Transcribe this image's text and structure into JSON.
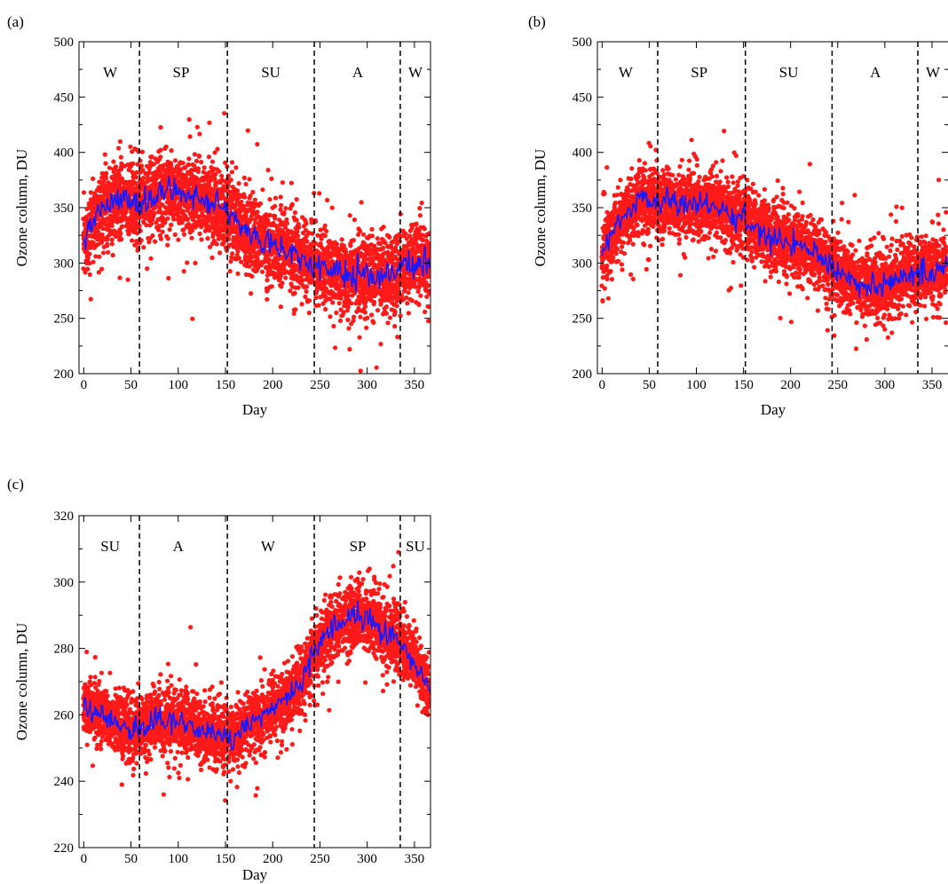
{
  "chart_data": [
    {
      "panel_label": "(a)",
      "type": "scatter",
      "xlabel": "Day",
      "ylabel": "Ozone column, DU",
      "xlim": [
        -5,
        367
      ],
      "ylim": [
        200,
        500
      ],
      "xticks": [
        0,
        50,
        100,
        150,
        200,
        250,
        300,
        350
      ],
      "yticks": [
        200,
        250,
        300,
        350,
        400,
        450,
        500
      ],
      "season_boundaries": [
        59,
        152,
        244,
        335
      ],
      "season_labels": [
        {
          "text": "W",
          "x": 28
        },
        {
          "text": "SP",
          "x": 103
        },
        {
          "text": "SU",
          "x": 198
        },
        {
          "text": "A",
          "x": 290
        },
        {
          "text": "W",
          "x": 351
        }
      ],
      "smoothed_curve": {
        "x": [
          0,
          10,
          20,
          30,
          40,
          50,
          60,
          70,
          80,
          90,
          100,
          110,
          120,
          130,
          140,
          150,
          160,
          170,
          180,
          190,
          200,
          210,
          220,
          230,
          240,
          250,
          260,
          270,
          280,
          290,
          300,
          310,
          320,
          330,
          340,
          350,
          360,
          366
        ],
        "y": [
          318,
          338,
          350,
          352,
          360,
          355,
          352,
          358,
          365,
          368,
          365,
          362,
          360,
          356,
          352,
          346,
          338,
          332,
          325,
          320,
          317,
          313,
          310,
          305,
          300,
          296,
          293,
          292,
          290,
          288,
          287,
          288,
          290,
          292,
          296,
          302,
          300,
          298
        ]
      },
      "scatter_model": {
        "spread": 30,
        "per_day": 11
      },
      "colors": {
        "points": "#ff1a1a",
        "curve": "#1a1aff"
      }
    },
    {
      "panel_label": "(b)",
      "type": "scatter",
      "xlabel": "Day",
      "ylabel": "Ozone column, DU",
      "xlim": [
        -5,
        367
      ],
      "ylim": [
        200,
        500
      ],
      "xticks": [
        0,
        50,
        100,
        150,
        200,
        250,
        300,
        350
      ],
      "yticks": [
        200,
        250,
        300,
        350,
        400,
        450,
        500
      ],
      "season_boundaries": [
        59,
        152,
        244,
        335
      ],
      "season_labels": [
        {
          "text": "W",
          "x": 25
        },
        {
          "text": "SP",
          "x": 103
        },
        {
          "text": "SU",
          "x": 198
        },
        {
          "text": "A",
          "x": 290
        },
        {
          "text": "W",
          "x": 351
        }
      ],
      "smoothed_curve": {
        "x": [
          0,
          10,
          20,
          30,
          40,
          50,
          60,
          70,
          80,
          90,
          100,
          110,
          120,
          130,
          140,
          150,
          160,
          170,
          180,
          190,
          200,
          210,
          220,
          230,
          240,
          250,
          260,
          270,
          280,
          290,
          300,
          310,
          320,
          330,
          340,
          350,
          360,
          366
        ],
        "y": [
          308,
          325,
          340,
          345,
          360,
          358,
          355,
          356,
          354,
          353,
          352,
          350,
          350,
          348,
          345,
          340,
          333,
          328,
          323,
          320,
          317,
          314,
          310,
          305,
          300,
          294,
          287,
          282,
          280,
          279,
          280,
          283,
          287,
          290,
          292,
          294,
          296,
          298
        ]
      },
      "scatter_model": {
        "spread": 26,
        "per_day": 11
      },
      "colors": {
        "points": "#ff1a1a",
        "curve": "#1a1aff"
      }
    },
    {
      "panel_label": "(c)",
      "type": "scatter",
      "xlabel": "Day",
      "ylabel": "Ozone column, DU",
      "xlim": [
        -5,
        367
      ],
      "ylim": [
        220,
        320
      ],
      "xticks": [
        0,
        50,
        100,
        150,
        200,
        250,
        300,
        350
      ],
      "yticks": [
        220,
        240,
        260,
        280,
        300,
        320
      ],
      "season_boundaries": [
        59,
        152,
        244,
        335
      ],
      "season_labels": [
        {
          "text": "SU",
          "x": 28
        },
        {
          "text": "A",
          "x": 100
        },
        {
          "text": "W",
          "x": 195
        },
        {
          "text": "SP",
          "x": 290
        },
        {
          "text": "SU",
          "x": 351
        }
      ],
      "smoothed_curve": {
        "x": [
          0,
          10,
          20,
          30,
          40,
          50,
          60,
          70,
          80,
          90,
          100,
          110,
          120,
          130,
          140,
          150,
          160,
          170,
          180,
          190,
          200,
          210,
          220,
          230,
          240,
          250,
          260,
          270,
          280,
          290,
          300,
          310,
          320,
          330,
          340,
          350,
          360,
          366
        ],
        "y": [
          263,
          261,
          260,
          258,
          257,
          256,
          256,
          257,
          258,
          258,
          258,
          257,
          256,
          255,
          254,
          253,
          254,
          256,
          258,
          260,
          262,
          264,
          266,
          270,
          276,
          282,
          285,
          287,
          289,
          290,
          289,
          287,
          285,
          283,
          280,
          276,
          270,
          267
        ]
      },
      "scatter_model": {
        "spread": 8,
        "per_day": 11
      },
      "colors": {
        "points": "#ff1a1a",
        "curve": "#1a1aff"
      }
    }
  ]
}
